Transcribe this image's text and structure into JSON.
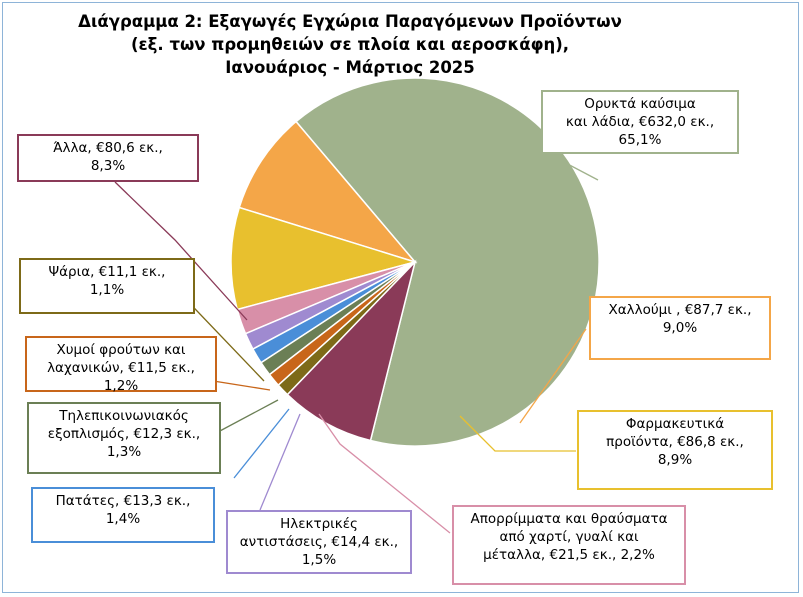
{
  "chart_data": {
    "type": "pie",
    "title_lines": [
      "Διάγραμμα 2: Εξαγωγές Εγχώρια Παραγόμενων Προϊόντων",
      "(εξ. των προμηθειών σε πλοία και αεροσκάφη),",
      "Ιανουάριος - Μάρτιος 2025"
    ],
    "slices": [
      {
        "value": 632.0,
        "color": "#a0b28c",
        "label_lines": [
          "Ορυκτά καύσιμα",
          "και λάδια, €632,0 εκ.,",
          "65,1%"
        ]
      },
      {
        "value": 87.7,
        "color": "#f4a648",
        "label_lines": [
          "Χαλλούμι , €87,7 εκ.,",
          "9,0%"
        ]
      },
      {
        "value": 86.8,
        "color": "#e8c02e",
        "label_lines": [
          "Φαρμακευτικά",
          "προϊόντα, €86,8 εκ.,",
          "8,9%"
        ]
      },
      {
        "value": 21.5,
        "color": "#d88fa8",
        "label_lines": [
          "Απορρίμματα και θραύσματα",
          "από χαρτί, γυαλί και",
          "μέταλλα, €21,5 εκ., 2,2%"
        ]
      },
      {
        "value": 14.4,
        "color": "#9f8ad0",
        "label_lines": [
          "Ηλεκτρικές",
          "αντιστάσεις, €14,4 εκ.,",
          "1,5%"
        ]
      },
      {
        "value": 13.3,
        "color": "#4a8ed8",
        "label_lines": [
          "Πατάτες, €13,3 εκ.,",
          "1,4%"
        ]
      },
      {
        "value": 12.3,
        "color": "#6b7f55",
        "label_lines": [
          "Τηλεπικοινωνιακός",
          "εξοπλισμός, €12,3 εκ.,",
          "1,3%"
        ]
      },
      {
        "value": 11.5,
        "color": "#c8661a",
        "label_lines": [
          "Χυμοί φρούτων και",
          "λαχανικών, €11,5 εκ.,",
          "1,2%"
        ]
      },
      {
        "value": 11.1,
        "color": "#7d6a18",
        "label_lines": [
          "Ψάρια, €11,1 εκ.,",
          "1,1%"
        ]
      },
      {
        "value": 80.6,
        "color": "#8a3a58",
        "label_lines": [
          "Άλλα, €80,6 εκ.,",
          "8,3%"
        ]
      }
    ]
  }
}
